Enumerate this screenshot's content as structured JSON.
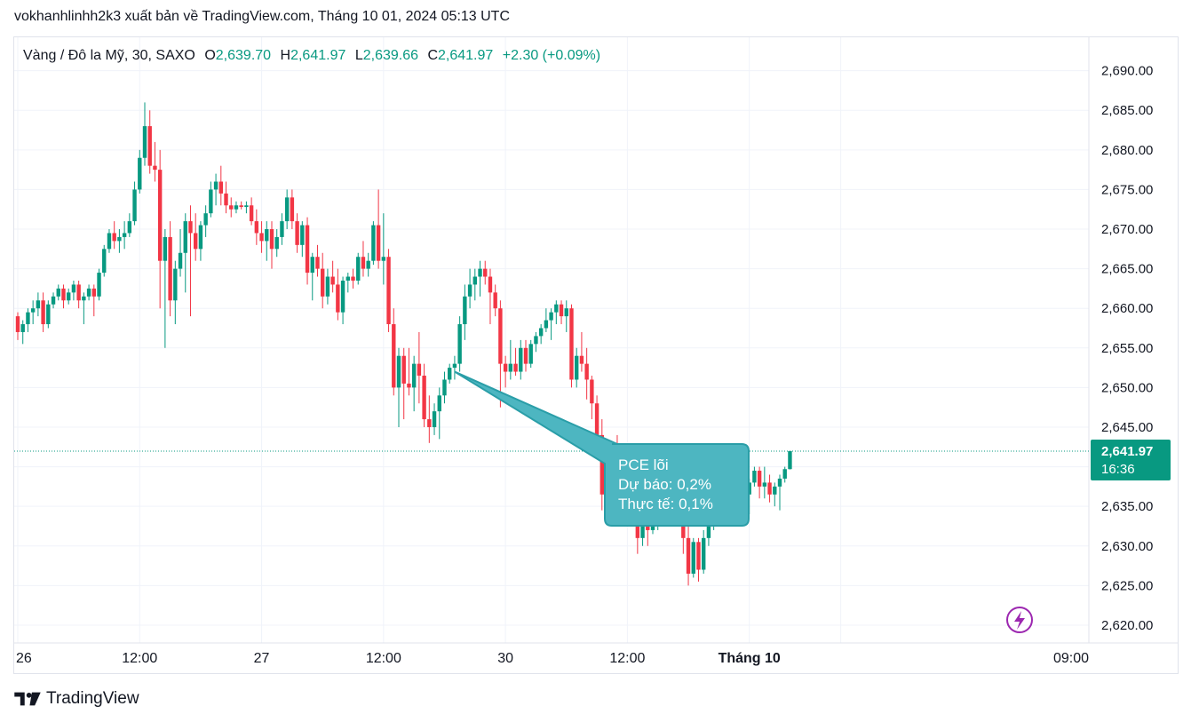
{
  "header": {
    "text": "vokhanhlinhh2k3 xuất bản về TradingView.com, Tháng 10 01, 2024 05:13 UTC"
  },
  "legend": {
    "symbol": "Vàng / Đô la Mỹ, 30, SAXO",
    "o_label": "O",
    "o_value": "2,639.70",
    "h_label": "H",
    "h_value": "2,641.97",
    "l_label": "L",
    "l_value": "2,639.66",
    "c_label": "C",
    "c_value": "2,641.97",
    "change": "+2.30 (+0.09%)"
  },
  "footer": {
    "brand": "TradingView",
    "logo_icon": "tradingview-logo-icon"
  },
  "colors": {
    "up": "#089981",
    "down": "#f23645",
    "grid": "#f0f3fa",
    "axis_text": "#131722",
    "price_tag": "#089981",
    "callout": "#4db6c1",
    "callout_border": "#2a9ea8",
    "lightning": "#9c27b0"
  },
  "chart_data": {
    "type": "candlestick",
    "ylim": [
      2618.2,
      2693.1
    ],
    "y_ticks": [
      "2,690.00",
      "2,685.00",
      "2,680.00",
      "2,675.00",
      "2,670.00",
      "2,665.00",
      "2,660.00",
      "2,655.00",
      "2,650.00",
      "2,645.00",
      "2,640.00",
      "2,635.00",
      "2,630.00",
      "2,625.00",
      "2,620.00"
    ],
    "x_ticks": [
      {
        "label": "26",
        "index": 0
      },
      {
        "label": "12:00",
        "index": 24
      },
      {
        "label": "27",
        "index": 48
      },
      {
        "label": "12:00",
        "index": 72
      },
      {
        "label": "30",
        "index": 96
      },
      {
        "label": "12:00",
        "index": 120
      },
      {
        "label": "Tháng 10",
        "index": 144
      },
      {
        "label": "09:00",
        "index": 162
      }
    ],
    "last_price": {
      "price": "2,641.97",
      "countdown": "16:36"
    },
    "annotation": {
      "title": "PCE lõi",
      "line1": "Dự báo: 0,2%",
      "line2": "Thực tế: 0,1%",
      "anchor_index": 86,
      "anchor_price": 2652
    },
    "candles": [
      [
        2659,
        2659.5,
        2656,
        2657
      ],
      [
        2657,
        2658.5,
        2655.5,
        2658
      ],
      [
        2658,
        2660,
        2657,
        2659.5
      ],
      [
        2659.5,
        2661,
        2658,
        2660
      ],
      [
        2660,
        2662,
        2659,
        2661
      ],
      [
        2661,
        2662,
        2657,
        2658
      ],
      [
        2658,
        2661,
        2657.5,
        2660.5
      ],
      [
        2660.5,
        2662,
        2660,
        2661.5
      ],
      [
        2661.5,
        2663,
        2661,
        2662.5
      ],
      [
        2662.5,
        2663,
        2660,
        2661
      ],
      [
        2661,
        2662.5,
        2660.5,
        2662
      ],
      [
        2662,
        2663.5,
        2661,
        2663
      ],
      [
        2663,
        2663.5,
        2660,
        2661
      ],
      [
        2661,
        2662,
        2658,
        2661.5
      ],
      [
        2661.5,
        2663,
        2661,
        2662.5
      ],
      [
        2662.5,
        2663,
        2659,
        2661.5
      ],
      [
        2661.5,
        2665,
        2661,
        2664.5
      ],
      [
        2664.5,
        2668,
        2664,
        2667.5
      ],
      [
        2667.5,
        2670,
        2667,
        2669.5
      ],
      [
        2669.5,
        2671,
        2667.5,
        2668.5
      ],
      [
        2668.5,
        2670,
        2667,
        2669
      ],
      [
        2669,
        2671,
        2667.5,
        2669.5
      ],
      [
        2669.5,
        2672,
        2669,
        2671
      ],
      [
        2671,
        2676,
        2670.5,
        2675
      ],
      [
        2675,
        2680,
        2674.5,
        2679
      ],
      [
        2679,
        2686,
        2678,
        2683
      ],
      [
        2683,
        2685,
        2677,
        2678
      ],
      [
        2678,
        2681,
        2676,
        2677.5
      ],
      [
        2677.5,
        2680,
        2660,
        2666
      ],
      [
        2666,
        2670,
        2655,
        2669
      ],
      [
        2669,
        2671,
        2659,
        2661
      ],
      [
        2661,
        2666,
        2658,
        2665
      ],
      [
        2665,
        2670,
        2664,
        2667
      ],
      [
        2667,
        2672,
        2662,
        2671
      ],
      [
        2671,
        2673,
        2659,
        2669.5
      ],
      [
        2669.5,
        2672,
        2666,
        2667.5
      ],
      [
        2667.5,
        2671,
        2666,
        2670.5
      ],
      [
        2670.5,
        2673,
        2669,
        2672
      ],
      [
        2672,
        2676,
        2671.5,
        2675
      ],
      [
        2675,
        2677,
        2673,
        2676
      ],
      [
        2676,
        2678,
        2673,
        2674.5
      ],
      [
        2674.5,
        2676,
        2672,
        2673
      ],
      [
        2673,
        2674,
        2671.5,
        2672.5
      ],
      [
        2672.5,
        2673.5,
        2672,
        2673
      ],
      [
        2673,
        2673.5,
        2672.5,
        2672.8
      ],
      [
        2672.8,
        2673.5,
        2672,
        2673
      ],
      [
        2673,
        2674,
        2670.5,
        2671
      ],
      [
        2671,
        2672.5,
        2668,
        2669.5
      ],
      [
        2669.5,
        2671,
        2667,
        2668.5
      ],
      [
        2668.5,
        2671,
        2666,
        2670
      ],
      [
        2670,
        2671,
        2665,
        2667.5
      ],
      [
        2667.5,
        2670,
        2666.5,
        2669
      ],
      [
        2669,
        2672,
        2668,
        2671
      ],
      [
        2671,
        2675,
        2670,
        2674
      ],
      [
        2674,
        2675,
        2670,
        2671
      ],
      [
        2671,
        2672,
        2667,
        2668
      ],
      [
        2668,
        2671,
        2666.5,
        2670.5
      ],
      [
        2670.5,
        2671.5,
        2663,
        2664.5
      ],
      [
        2664.5,
        2667,
        2661,
        2666.5
      ],
      [
        2666.5,
        2668,
        2664,
        2665
      ],
      [
        2665,
        2667,
        2660,
        2661.5
      ],
      [
        2661.5,
        2665,
        2660.5,
        2664
      ],
      [
        2664,
        2666,
        2662,
        2663
      ],
      [
        2663,
        2665,
        2658.5,
        2659.5
      ],
      [
        2659.5,
        2664,
        2658,
        2663.5
      ],
      [
        2663.5,
        2664.5,
        2662,
        2664
      ],
      [
        2664,
        2665,
        2662.5,
        2663.5
      ],
      [
        2663.5,
        2667,
        2663,
        2666.5
      ],
      [
        2666.5,
        2668.5,
        2664,
        2665
      ],
      [
        2665,
        2667,
        2664,
        2666
      ],
      [
        2666,
        2671,
        2665.5,
        2670.5
      ],
      [
        2670.5,
        2675,
        2665,
        2666
      ],
      [
        2666,
        2672,
        2663,
        2666.5
      ],
      [
        2666.5,
        2667.5,
        2657,
        2658
      ],
      [
        2658,
        2660,
        2649,
        2650
      ],
      [
        2650,
        2655,
        2645,
        2654
      ],
      [
        2654,
        2655,
        2646,
        2650.5
      ],
      [
        2650.5,
        2655,
        2649,
        2650
      ],
      [
        2650,
        2654,
        2647,
        2653
      ],
      [
        2653,
        2657,
        2648,
        2651.5
      ],
      [
        2651.5,
        2653,
        2645,
        2646
      ],
      [
        2646,
        2649,
        2643,
        2645
      ],
      [
        2645,
        2648,
        2644,
        2647
      ],
      [
        2647,
        2650,
        2643.5,
        2649
      ],
      [
        2649,
        2652,
        2648,
        2651
      ],
      [
        2651,
        2653,
        2650.5,
        2652.5
      ],
      [
        2652.5,
        2654,
        2651,
        2653
      ],
      [
        2653,
        2659,
        2652,
        2658
      ],
      [
        2658,
        2663,
        2656,
        2661.5
      ],
      [
        2661.5,
        2665,
        2660,
        2663
      ],
      [
        2663,
        2665,
        2661,
        2664
      ],
      [
        2664,
        2666,
        2661.5,
        2665
      ],
      [
        2665,
        2666,
        2663,
        2664
      ],
      [
        2664,
        2665,
        2658,
        2662
      ],
      [
        2662,
        2663,
        2659,
        2660
      ],
      [
        2660,
        2661,
        2647.5,
        2653
      ],
      [
        2653,
        2654,
        2650,
        2652
      ],
      [
        2652,
        2656,
        2651,
        2653
      ],
      [
        2653,
        2655,
        2651.5,
        2652
      ],
      [
        2652,
        2656,
        2651,
        2655
      ],
      [
        2655,
        2656,
        2652,
        2653
      ],
      [
        2653,
        2656,
        2652.5,
        2655.5
      ],
      [
        2655.5,
        2657,
        2654.5,
        2656.5
      ],
      [
        2656.5,
        2658,
        2655.5,
        2657.5
      ],
      [
        2657.5,
        2660,
        2657,
        2658.5
      ],
      [
        2658.5,
        2660,
        2656,
        2659.5
      ],
      [
        2659.5,
        2661,
        2658,
        2660.5
      ],
      [
        2660.5,
        2661,
        2658,
        2659
      ],
      [
        2659,
        2661,
        2657,
        2660
      ],
      [
        2660,
        2660.5,
        2650,
        2651
      ],
      [
        2651,
        2655,
        2650,
        2654
      ],
      [
        2654,
        2657,
        2652,
        2653
      ],
      [
        2653,
        2655,
        2648.5,
        2651
      ],
      [
        2651,
        2651.5,
        2646,
        2648
      ],
      [
        2648,
        2649,
        2643,
        2644
      ],
      [
        2644,
        2646,
        2634.5,
        2636.5
      ],
      [
        2636.5,
        2639,
        2635,
        2637.5
      ],
      [
        2637.5,
        2642,
        2637,
        2641
      ],
      [
        2641,
        2644,
        2638,
        2638.5
      ],
      [
        2638.5,
        2641,
        2634,
        2637
      ],
      [
        2637,
        2641,
        2636,
        2640
      ],
      [
        2640,
        2641,
        2633,
        2634.5
      ],
      [
        2634.5,
        2636,
        2629,
        2631
      ],
      [
        2631,
        2635,
        2630,
        2633.5
      ],
      [
        2633.5,
        2635,
        2630,
        2632
      ],
      [
        2632,
        2634,
        2631.5,
        2633
      ],
      [
        2633,
        2634.5,
        2632,
        2634
      ],
      [
        2634,
        2637,
        2633.5,
        2636.5
      ],
      [
        2636.5,
        2639.5,
        2636,
        2639
      ],
      [
        2639,
        2640,
        2637,
        2638
      ],
      [
        2638,
        2641,
        2636.5,
        2637.5
      ],
      [
        2637.5,
        2638,
        2629,
        2631
      ],
      [
        2631,
        2633,
        2625,
        2626.5
      ],
      [
        2626.5,
        2631,
        2626,
        2630.5
      ],
      [
        2630.5,
        2631,
        2625.5,
        2627
      ],
      [
        2627,
        2632,
        2626.5,
        2631
      ],
      [
        2631,
        2633,
        2630,
        2632.5
      ],
      [
        2632.5,
        2635,
        2632,
        2634.5
      ],
      [
        2634.5,
        2636,
        2633.5,
        2635
      ],
      [
        2635,
        2636,
        2634,
        2635.5
      ],
      [
        2635.5,
        2636.5,
        2634.5,
        2636
      ],
      [
        2636,
        2637,
        2635,
        2636.5
      ],
      [
        2636.5,
        2638,
        2635.5,
        2637
      ],
      [
        2637,
        2637.5,
        2636,
        2636.5
      ],
      [
        2636.5,
        2638.5,
        2634,
        2638
      ],
      [
        2638,
        2640,
        2637.5,
        2639.5
      ],
      [
        2639.5,
        2640,
        2636,
        2637.5
      ],
      [
        2637.5,
        2640,
        2636,
        2638
      ],
      [
        2638,
        2639,
        2635.5,
        2636.5
      ],
      [
        2636.5,
        2638,
        2635,
        2637.5
      ],
      [
        2637.5,
        2639,
        2634.5,
        2638.5
      ],
      [
        2638.5,
        2640,
        2638,
        2639.7
      ],
      [
        2639.7,
        2641.97,
        2639.66,
        2641.97
      ]
    ]
  }
}
